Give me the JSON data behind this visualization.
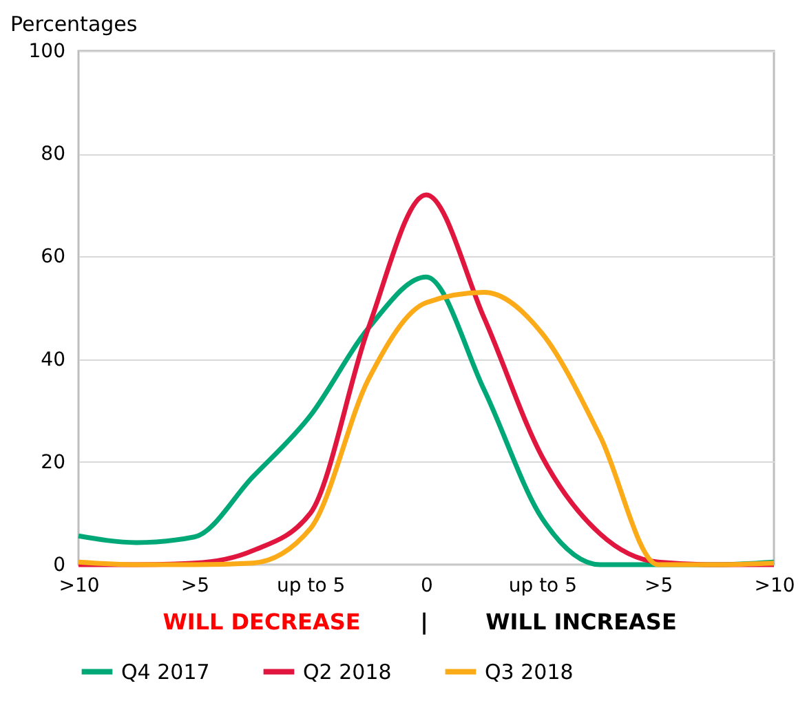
{
  "chart_data": {
    "type": "line",
    "ylabel": "Percentages",
    "categories": [
      ">10",
      null,
      ">5",
      null,
      "up to 5",
      null,
      "0",
      null,
      "up to 5",
      null,
      ">5",
      null,
      ">10"
    ],
    "series": [
      {
        "name": "Q4 2017",
        "color": "#00a878",
        "values": [
          5.6,
          4.3,
          5.4,
          17,
          29,
          46,
          56,
          34,
          9,
          0,
          0,
          0,
          0.5
        ]
      },
      {
        "name": "Q2 2018",
        "color": "#e0163f",
        "values": [
          0,
          0,
          0.3,
          2.7,
          10,
          46,
          72,
          48,
          21,
          6,
          0.5,
          0,
          0
        ]
      },
      {
        "name": "Q3 2018",
        "color": "#fbab18",
        "values": [
          0.5,
          0,
          0,
          0.3,
          7,
          36,
          51,
          53,
          45,
          25,
          0,
          0,
          0.3
        ]
      }
    ],
    "ylim": [
      0,
      100
    ],
    "yticks": [
      0,
      20,
      40,
      60,
      80,
      100
    ],
    "grid": "y",
    "legend": "bottom",
    "line_style": "solid",
    "marker": "none",
    "annotations": [
      "WILL DECREASE",
      "|",
      "WILL INCREASE"
    ]
  }
}
